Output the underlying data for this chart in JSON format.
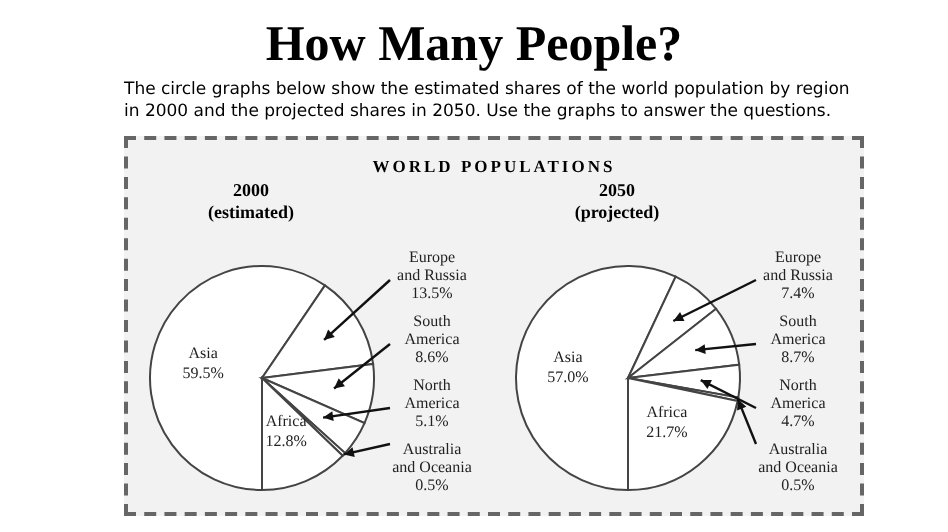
{
  "chart_data": [
    {
      "type": "pie",
      "title": "2000",
      "subtitle": "(estimated)",
      "annotations": [
        "How Many People?",
        "The circle graphs below show the estimated shares of the world population by region in 2000 and the projected shares in 2050. Use the graphs to answer the questions.",
        "WORLD POPULATIONS"
      ],
      "categories": [
        "Asia",
        "Europe and Russia",
        "South America",
        "North America",
        "Australia and Oceania",
        "Africa"
      ],
      "values": [
        59.5,
        13.5,
        8.6,
        5.1,
        0.5,
        12.8
      ],
      "value_labels": [
        "59.5%",
        "13.5%",
        "8.6%",
        "5.1%",
        "0.5%",
        "12.8%"
      ],
      "colors": [
        "#ffffff",
        "#ffffff",
        "#ffffff",
        "#ffffff",
        "#ffffff",
        "#ffffff"
      ],
      "legend": false
    },
    {
      "type": "pie",
      "title": "2050",
      "subtitle": "(projected)",
      "categories": [
        "Asia",
        "Europe and Russia",
        "South America",
        "North America",
        "Australia and Oceania",
        "Africa"
      ],
      "values": [
        57.0,
        7.4,
        8.7,
        4.7,
        0.5,
        21.7
      ],
      "value_labels": [
        "57.0%",
        "7.4%",
        "8.7%",
        "4.7%",
        "0.5%",
        "21.7%"
      ],
      "colors": [
        "#ffffff",
        "#ffffff",
        "#ffffff",
        "#ffffff",
        "#ffffff",
        "#ffffff"
      ],
      "legend": false
    }
  ]
}
